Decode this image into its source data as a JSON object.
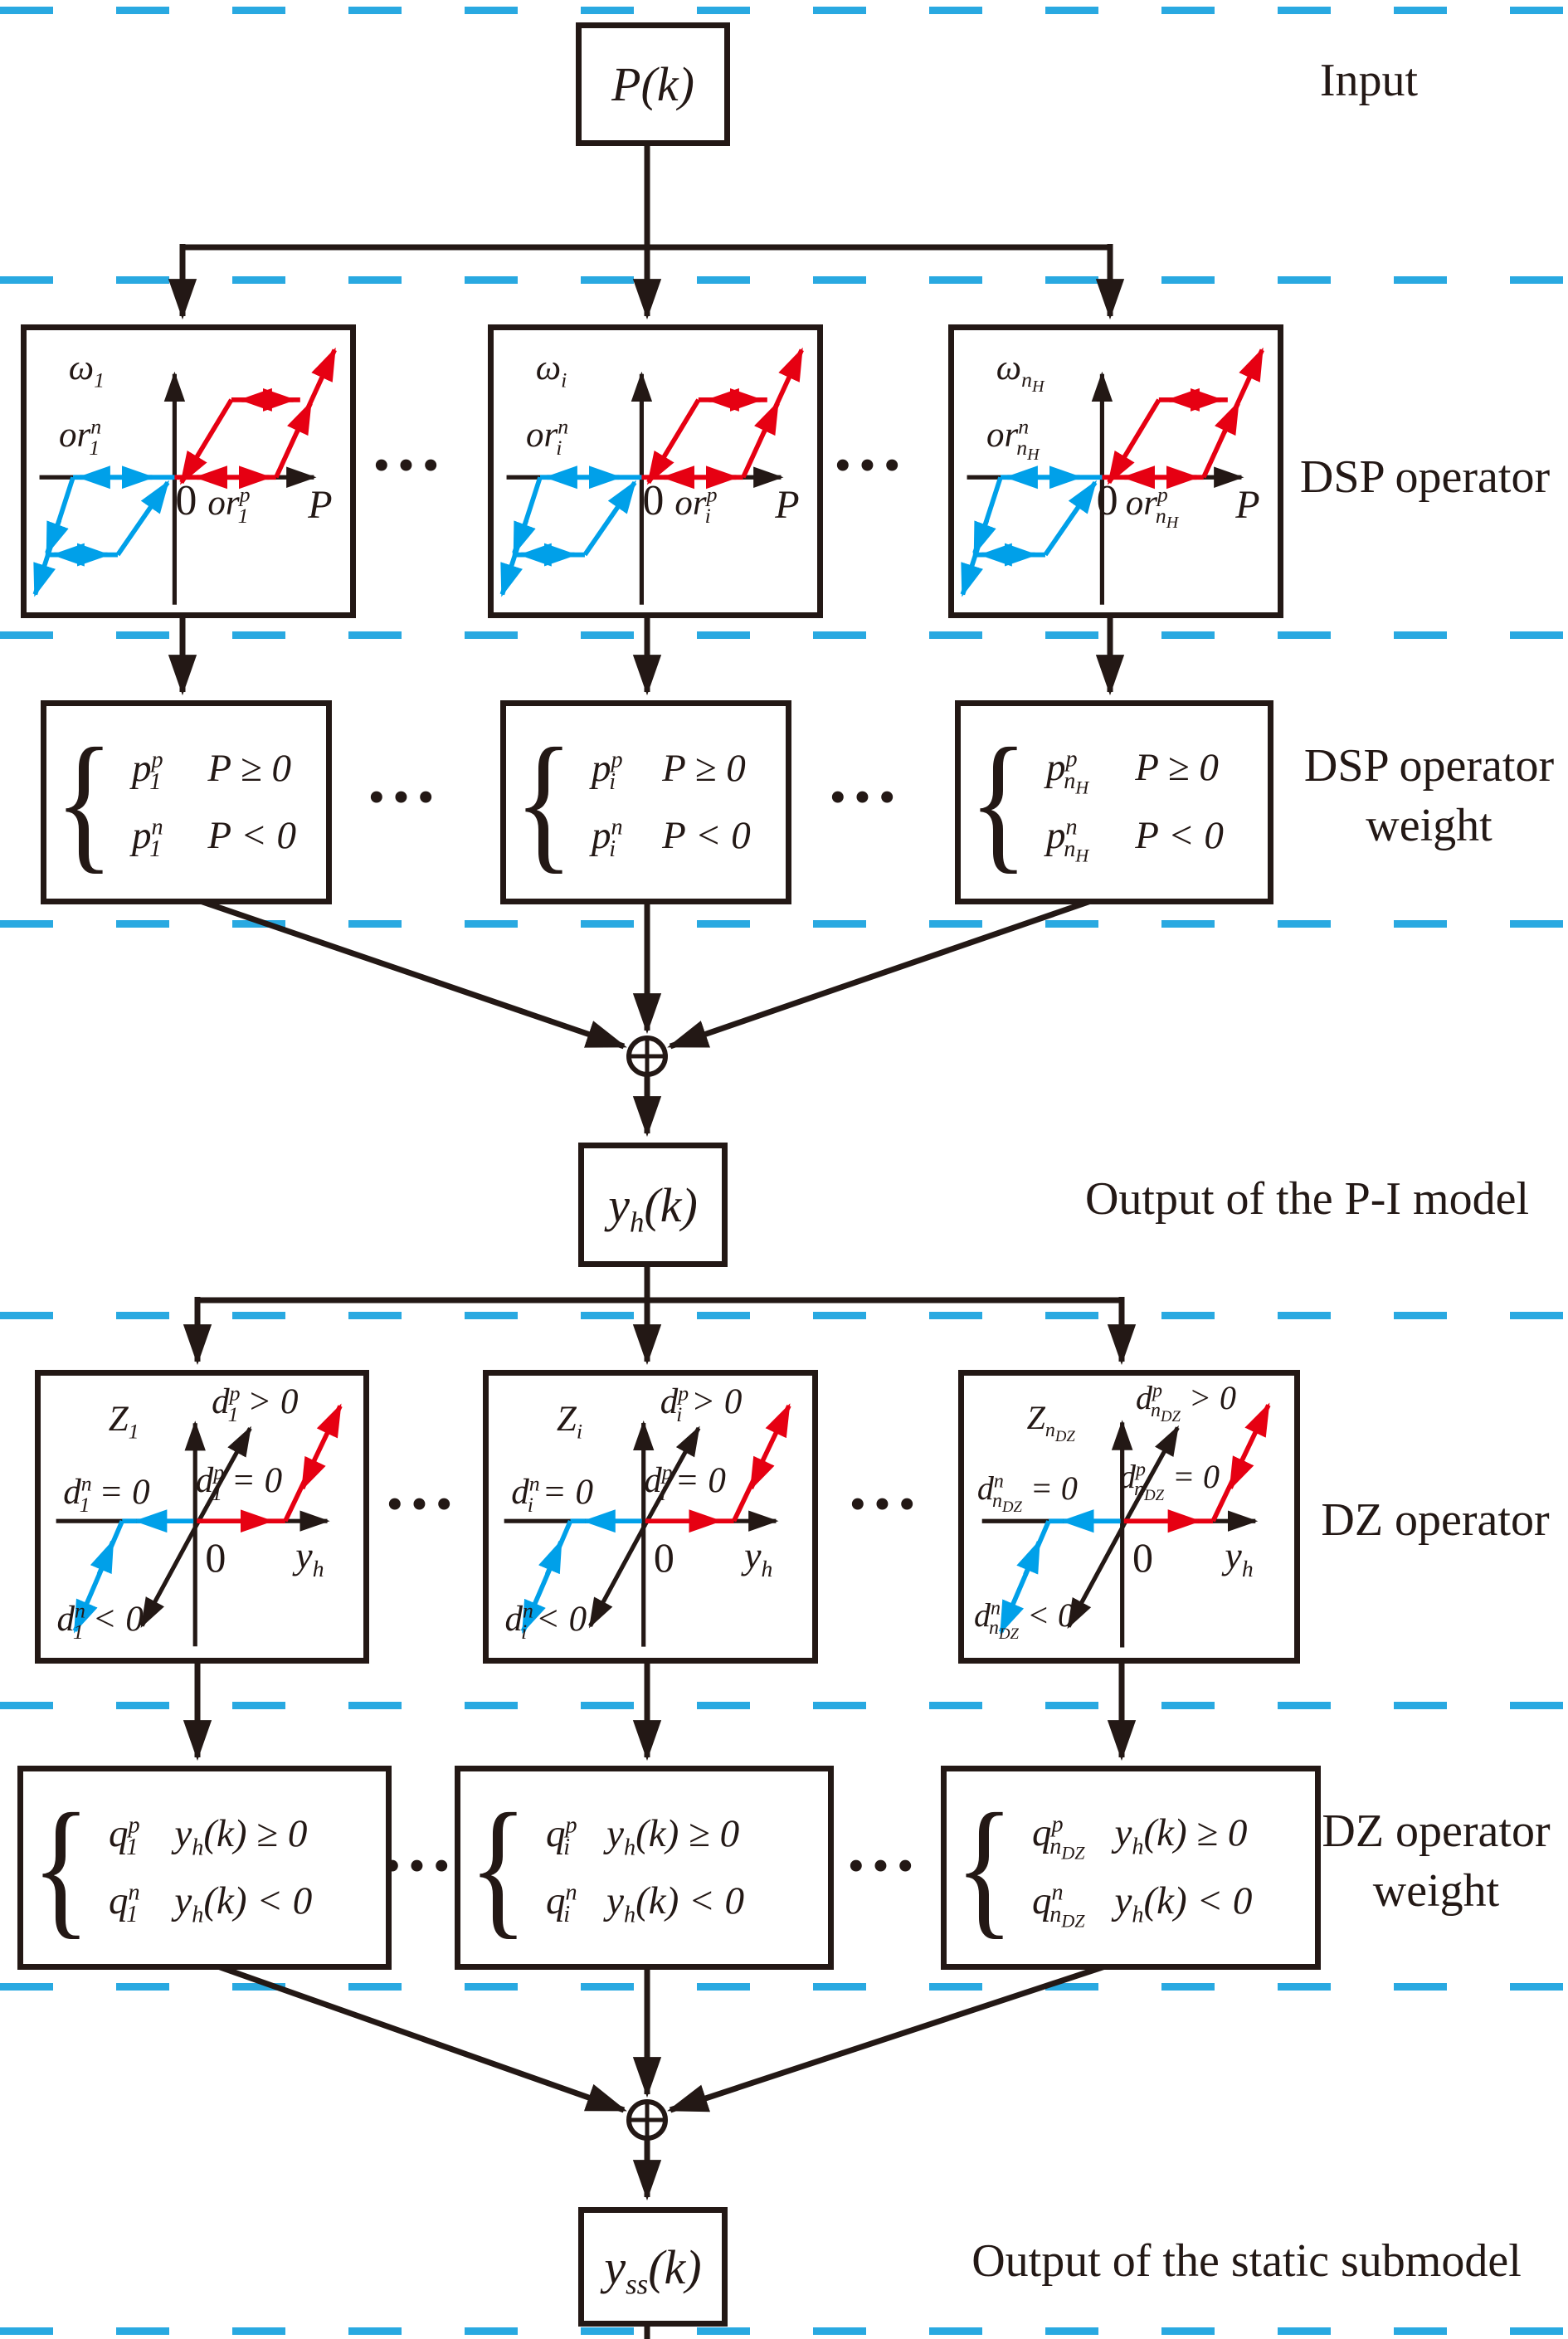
{
  "palette": {
    "line_black": "#231815",
    "loop_red": "#e60012",
    "loop_blue": "#00a0e9",
    "dash_blue": "#29a9e1",
    "background": "#ffffff"
  },
  "ellipsis": "···",
  "side_labels": {
    "input": "Input",
    "dsp_operator": "DSP operator",
    "dsp_weight_line1": "DSP operator",
    "dsp_weight_line2": "weight",
    "pi_output": "Output of the P-I model",
    "dz_operator": "DZ operator",
    "dz_weight_line1": "DZ operator",
    "dz_weight_line2": "weight",
    "static_output": "Output of the static submodel"
  },
  "nodes": {
    "input": "P(k)",
    "pi_output": "y<sub>h</sub>(k)",
    "static_output": "y<sub>ss</sub>(k)"
  },
  "dsp_operators": [
    {
      "omega": "ω<sub>1</sub>",
      "or_n": "or<sup>n</sup><sub>1</sub>",
      "zero": "0",
      "or_p": "or<sup>p</sup><sub>1</sub>",
      "x_axis": "P"
    },
    {
      "omega": "ω<sub>i</sub>",
      "or_n": "or<sup>n</sup><sub>i</sub>",
      "zero": "0",
      "or_p": "or<sup>p</sup><sub>i</sub>",
      "x_axis": "P"
    },
    {
      "omega": "ω<sub>n<sub>H</sub></sub>",
      "or_n": "or<sup>n</sup><sub>n<sub>H</sub></sub>",
      "zero": "0",
      "or_p": "or<sup>p</sup><sub>n<sub>H</sub></sub>",
      "x_axis": "P"
    }
  ],
  "dsp_weights": [
    {
      "w_pos": "p<sup>p</sup><sub>1</sub>",
      "cond_pos": "P ≥ 0",
      "w_neg": "p<sup>n</sup><sub>1</sub>",
      "cond_neg": "P &lt; 0"
    },
    {
      "w_pos": "p<sup>p</sup><sub>i</sub>",
      "cond_pos": "P ≥ 0",
      "w_neg": "p<sup>n</sup><sub>i</sub>",
      "cond_neg": "P &lt; 0"
    },
    {
      "w_pos": "p<sup>p</sup><sub>n<sub>H</sub></sub>",
      "cond_pos": "P ≥ 0",
      "w_neg": "p<sup>n</sup><sub>n<sub>H</sub></sub>",
      "cond_neg": "P &lt; 0"
    }
  ],
  "dz_operators": [
    {
      "z": "Z<sub>1</sub>",
      "dp_gt": "d<sup>p</sup><sub>1</sub> &gt; 0",
      "dp_eq": "d<sup>p</sup><sub>1</sub> = 0",
      "dn_eq": "d<sup>n</sup><sub>1</sub> = 0",
      "dn_lt": "d<sup>n</sup><sub>1</sub> &lt; 0",
      "zero": "0",
      "x_axis": "y<sub>h</sub>"
    },
    {
      "z": "Z<sub>i</sub>",
      "dp_gt": "d<sup>p</sup><sub>i</sub> &gt; 0",
      "dp_eq": "d<sup>p</sup><sub>i</sub> = 0",
      "dn_eq": "d<sup>n</sup><sub>i</sub> = 0",
      "dn_lt": "d<sup>n</sup><sub>i</sub> &lt; 0",
      "zero": "0",
      "x_axis": "y<sub>h</sub>"
    },
    {
      "z": "Z<sub>n<sub>DZ</sub></sub>",
      "dp_gt": "d<sup>p</sup><sub>n<sub>DZ</sub></sub> &gt; 0",
      "dp_eq": "d<sup>p</sup><sub>n<sub>DZ</sub></sub> = 0",
      "dn_eq": "d<sup>n</sup><sub>n<sub>DZ</sub></sub> = 0",
      "dn_lt": "d<sup>n</sup><sub>n<sub>DZ</sub></sub> &lt; 0",
      "zero": "0",
      "x_axis": "y<sub>h</sub>"
    }
  ],
  "dz_weights": [
    {
      "w_pos": "q<sup>p</sup><sub>1</sub>",
      "cond_pos": "y<sub>h</sub>(k) ≥ 0",
      "w_neg": "q<sup>n</sup><sub>1</sub>",
      "cond_neg": "y<sub>h</sub>(k) &lt; 0"
    },
    {
      "w_pos": "q<sup>p</sup><sub>i</sub>",
      "cond_pos": "y<sub>h</sub>(k) ≥ 0",
      "w_neg": "q<sup>n</sup><sub>i</sub>",
      "cond_neg": "y<sub>h</sub>(k) &lt; 0"
    },
    {
      "w_pos": "q<sup>p</sup><sub>n<sub>DZ</sub></sub>",
      "cond_pos": "y<sub>h</sub>(k) ≥ 0",
      "w_neg": "q<sup>n</sup><sub>n<sub>DZ</sub></sub>",
      "cond_neg": "y<sub>h</sub>(k) &lt; 0"
    }
  ]
}
